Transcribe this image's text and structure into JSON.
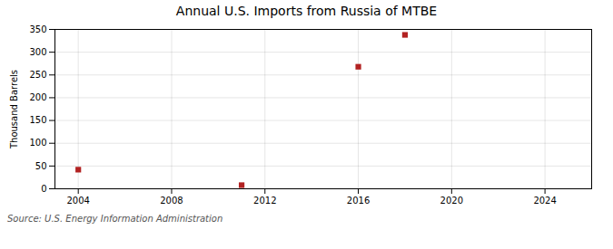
{
  "chart_data": {
    "type": "scatter",
    "title": "Annual U.S. Imports from Russia of MTBE",
    "ylabel": "Thousand Barrels",
    "source": "Source: U.S. Energy Information Administration",
    "x": [
      2004,
      2011,
      2016,
      2018
    ],
    "values": [
      42,
      8,
      268,
      338
    ],
    "color": "#b22222",
    "marker": "square",
    "xlim": [
      2003,
      2026
    ],
    "ylim": [
      0,
      350
    ],
    "xticks": [
      2004,
      2008,
      2012,
      2016,
      2020,
      2024
    ],
    "yticks": [
      0,
      50,
      100,
      150,
      200,
      250,
      300,
      350
    ],
    "grid": true
  }
}
